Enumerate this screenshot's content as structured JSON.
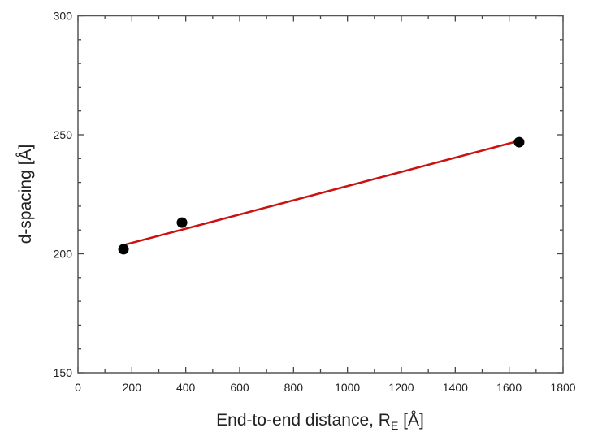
{
  "chart_data": {
    "type": "scatter",
    "title": "",
    "xlabel": "End-to-end distance, R",
    "xlabel_sub": "E",
    "xlabel_unit": " [Å]",
    "ylabel": "d-spacing [Å]",
    "xlim": [
      0,
      1800
    ],
    "ylim": [
      150,
      300
    ],
    "xticks": [
      0,
      200,
      400,
      600,
      800,
      1000,
      1200,
      1400,
      1600,
      1800
    ],
    "yticks": [
      150,
      200,
      250,
      300
    ],
    "grid": false,
    "points": [
      {
        "x": 169,
        "y": 201.9
      },
      {
        "x": 386,
        "y": 213.1
      },
      {
        "x": 1637,
        "y": 246.9
      }
    ],
    "fit_line": {
      "type": "linear",
      "x_range": [
        170,
        1637
      ],
      "slope": 0.02986,
      "intercept": 198.6,
      "color": "#cc1111"
    },
    "marker_color": "#000000"
  }
}
